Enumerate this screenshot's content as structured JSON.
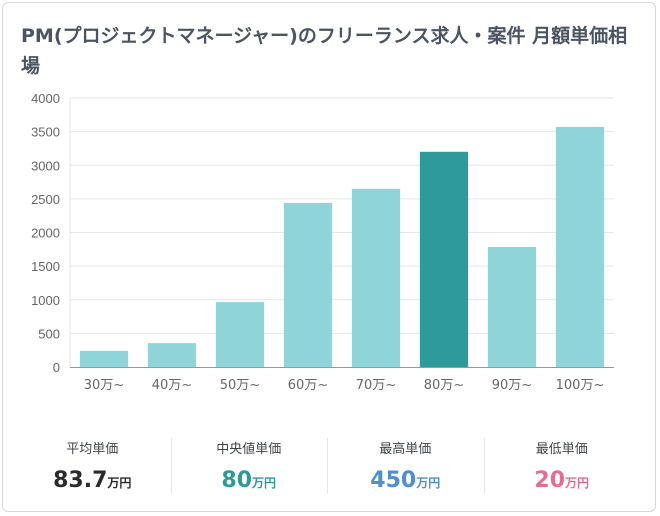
{
  "title": "PM(プロジェクトマネージャー)のフリーランス求人・案件 月額単価相場",
  "chart_data": {
    "type": "bar",
    "title": "PM(プロジェクトマネージャー)のフリーランス求人・案件 月額単価相場",
    "xlabel": "",
    "ylabel": "",
    "categories": [
      "30万~",
      "40万~",
      "50万~",
      "60万~",
      "70万~",
      "80万~",
      "90万~",
      "100万~"
    ],
    "values": [
      240,
      355,
      965,
      2440,
      2650,
      3200,
      1785,
      3570
    ],
    "ylim": [
      0,
      4000
    ],
    "yticks": [
      0,
      500,
      1000,
      1500,
      2000,
      2500,
      3000,
      3500,
      4000
    ],
    "grid": true,
    "highlight_index": 5,
    "colors": {
      "bar": "#8fd4d8",
      "highlight": "#2e9a9c",
      "grid": "#e6e6e6",
      "axis": "#999999",
      "tick_text": "#666666"
    }
  },
  "stats": [
    {
      "label": "平均単価",
      "value": "83.7",
      "unit": "万円",
      "color": "#2b2b2b"
    },
    {
      "label": "中央値単価",
      "value": "80",
      "unit": "万円",
      "color": "#2e9a9c"
    },
    {
      "label": "最高単価",
      "value": "450",
      "unit": "万円",
      "color": "#4e8fd0"
    },
    {
      "label": "最低単価",
      "value": "20",
      "unit": "万円",
      "color": "#e56e8e"
    }
  ]
}
